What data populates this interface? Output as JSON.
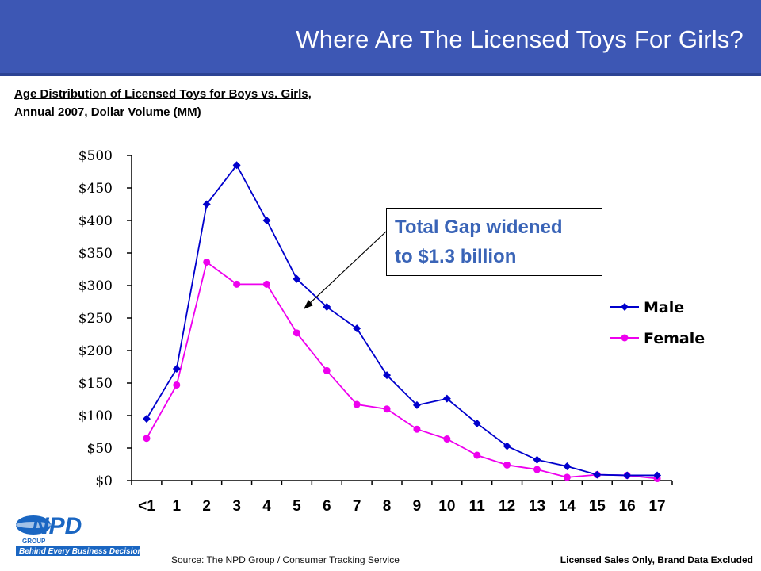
{
  "slide": {
    "title": "Where Are The Licensed Toys For Girls?",
    "subtitle_line1": "Age Distribution of Licensed Toys for Boys vs. Girls,",
    "subtitle_line2": "Annual 2007, Dollar Volume (MM)",
    "callout_line1": "Total Gap widened",
    "callout_line2": "to $1.3 billion",
    "source": "Source:  The NPD Group / Consumer Tracking Service",
    "footer_note": "Licensed Sales Only, Brand Data Excluded",
    "logo_text": "NPD",
    "logo_group": "GROUP",
    "logo_tagline": "Behind Every Business Decision"
  },
  "colors": {
    "header": "#3d57b4",
    "male": "#0000cc",
    "female": "#ee00ee",
    "callout_text": "#3a64b7"
  },
  "chart_data": {
    "type": "line",
    "title": "",
    "xlabel": "",
    "ylabel": "",
    "categories": [
      "<1",
      "1",
      "2",
      "3",
      "4",
      "5",
      "6",
      "7",
      "8",
      "9",
      "10",
      "11",
      "12",
      "13",
      "14",
      "15",
      "16",
      "17"
    ],
    "y_tick_labels": [
      "$0",
      "$50",
      "$100",
      "$150",
      "$200",
      "$250",
      "$300",
      "$350",
      "$400",
      "$450",
      "$500"
    ],
    "ylim": [
      0,
      500
    ],
    "grid": false,
    "legend_position": "right",
    "series": [
      {
        "name": "Male",
        "marker": "diamond",
        "values": [
          95,
          172,
          425,
          485,
          400,
          310,
          267,
          234,
          162,
          116,
          126,
          88,
          53,
          32,
          22,
          9,
          8,
          8
        ]
      },
      {
        "name": "Female",
        "marker": "circle",
        "values": [
          65,
          147,
          336,
          302,
          302,
          227,
          169,
          117,
          110,
          79,
          64,
          39,
          24,
          17,
          5,
          9,
          8,
          3
        ]
      }
    ]
  }
}
